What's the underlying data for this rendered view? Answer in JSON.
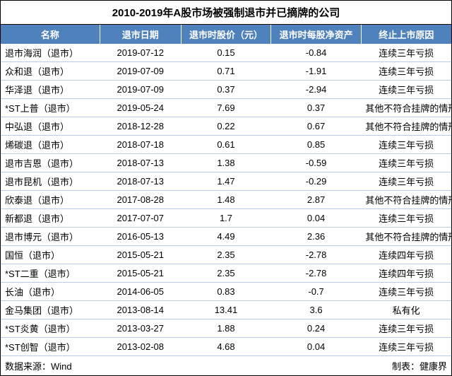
{
  "title": "2010-2019年A股市场被强制退市并已摘牌的公司",
  "title_fontsize": 15,
  "header_bg": "#4f81bd",
  "header_fg": "#ffffff",
  "row_border_color": "#b8cce4",
  "body_fontsize": 13,
  "columns": [
    "名称",
    "退市日期",
    "退市时股价（元）",
    "退市时每股净资产",
    "终止上市原因"
  ],
  "rows": [
    [
      "退市海润（退市）",
      "2019-07-12",
      "0.15",
      "-0.84",
      "连续三年亏损"
    ],
    [
      "众和退（退市）",
      "2019-07-09",
      "0.71",
      "-1.91",
      "连续三年亏损"
    ],
    [
      "华泽退（退市）",
      "2019-07-09",
      "0.37",
      "-2.94",
      "连续三年亏损"
    ],
    [
      "*ST上普（退市）",
      "2019-05-24",
      "7.69",
      "0.37",
      "其他不符合挂牌的情形"
    ],
    [
      "中弘退（退市）",
      "2018-12-28",
      "0.22",
      "0.67",
      "其他不符合挂牌的情形"
    ],
    [
      "烯碳退（退市）",
      "2018-07-18",
      "0.61",
      "0.85",
      "连续三年亏损"
    ],
    [
      "退市吉恩（退市）",
      "2018-07-13",
      "1.38",
      "-0.59",
      "连续三年亏损"
    ],
    [
      "退市昆机（退市）",
      "2018-07-13",
      "1.47",
      "-0.29",
      "连续三年亏损"
    ],
    [
      "欣泰退（退市）",
      "2017-08-28",
      "1.48",
      "2.87",
      "其他不符合挂牌的情形"
    ],
    [
      "新都退（退市）",
      "2017-07-07",
      "1.7",
      "0.04",
      "连续三年亏损"
    ],
    [
      "退市博元（退市）",
      "2016-05-13",
      "4.49",
      "2.36",
      "其他不符合挂牌的情形"
    ],
    [
      "国恒（退市）",
      "2015-05-21",
      "2.35",
      "-2.78",
      "连续四年亏损"
    ],
    [
      "*ST二重（退市）",
      "2015-05-21",
      "2.35",
      "-2.78",
      "连续四年亏损"
    ],
    [
      "长油（退市）",
      "2014-06-05",
      "0.83",
      "-0.7",
      "连续三年亏损"
    ],
    [
      "金马集团（退市）",
      "2013-08-14",
      "13.41",
      "3.6",
      "私有化"
    ],
    [
      "*ST炎黄（退市）",
      "2013-03-27",
      "1.88",
      "0.24",
      "连续三年亏损"
    ],
    [
      "*ST创智（退市）",
      "2013-02-08",
      "4.68",
      "0.04",
      "连续三年亏损"
    ]
  ],
  "footer_left": "数据来源：Wind",
  "footer_right": "制表：健康界"
}
